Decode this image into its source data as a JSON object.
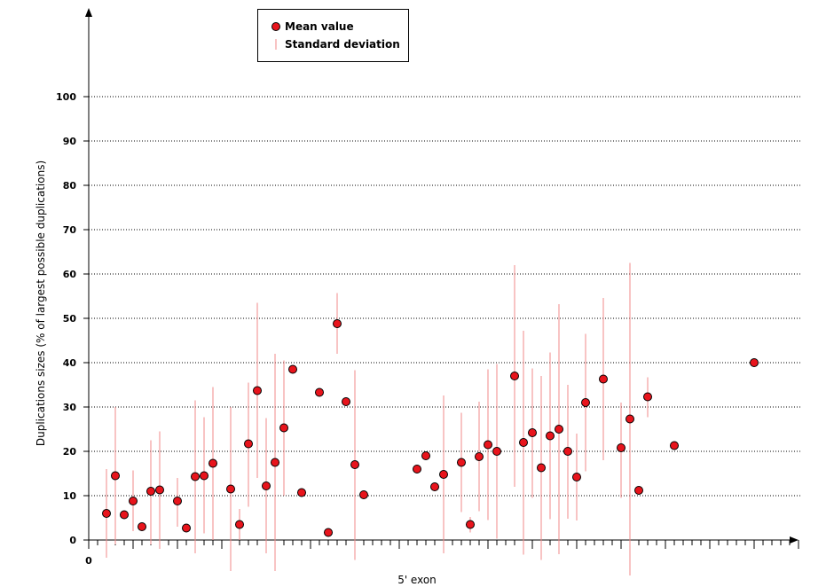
{
  "chart_data": {
    "type": "scatter",
    "xlabel": "5' exon",
    "ylabel": "Duplications sizes (% of largest possible duplications)",
    "ylim": [
      0,
      100
    ],
    "yticks": [
      0,
      10,
      20,
      30,
      40,
      50,
      60,
      70,
      80,
      90,
      100
    ],
    "xlim": [
      0,
      80
    ],
    "x_origin_label": "0",
    "grid": "horizontal dotted",
    "legend_position": "top-left",
    "legend": [
      {
        "label": "Mean value",
        "marker": "circle"
      },
      {
        "label": "Standard deviation",
        "marker": "line"
      }
    ],
    "colors": {
      "marker_fill": "#e8141c",
      "marker_stroke": "#000000",
      "sd_line": "#f08a8a"
    },
    "points": [
      {
        "x": 2,
        "mean": 6,
        "sd_low": -4,
        "sd_high": 16
      },
      {
        "x": 3,
        "mean": 14.5,
        "sd_low": -1,
        "sd_high": 30
      },
      {
        "x": 4,
        "mean": 5.7
      },
      {
        "x": 5,
        "mean": 8.8,
        "sd_low": 2,
        "sd_high": 15.7
      },
      {
        "x": 6,
        "mean": 3
      },
      {
        "x": 7,
        "mean": 11,
        "sd_low": -1,
        "sd_high": 22.5
      },
      {
        "x": 8,
        "mean": 11.3,
        "sd_low": -2,
        "sd_high": 24.5
      },
      {
        "x": 10,
        "mean": 8.8,
        "sd_low": 3,
        "sd_high": 14
      },
      {
        "x": 11,
        "mean": 2.7
      },
      {
        "x": 12,
        "mean": 14.3,
        "sd_low": -3,
        "sd_high": 31.5
      },
      {
        "x": 13,
        "mean": 14.5,
        "sd_low": 1.5,
        "sd_high": 27.7
      },
      {
        "x": 14,
        "mean": 17.3,
        "sd_low": 0,
        "sd_high": 34.5
      },
      {
        "x": 16,
        "mean": 11.5,
        "sd_low": -7,
        "sd_high": 30
      },
      {
        "x": 17,
        "mean": 3.5,
        "sd_low": 0,
        "sd_high": 7
      },
      {
        "x": 18,
        "mean": 21.7,
        "sd_low": 7.5,
        "sd_high": 35.5
      },
      {
        "x": 19,
        "mean": 33.7,
        "sd_low": 14,
        "sd_high": 53.5
      },
      {
        "x": 20,
        "mean": 12.2,
        "sd_low": -3,
        "sd_high": 27.5
      },
      {
        "x": 21,
        "mean": 17.5,
        "sd_low": -7,
        "sd_high": 42
      },
      {
        "x": 22,
        "mean": 25.3,
        "sd_low": 10,
        "sd_high": 40.5
      },
      {
        "x": 23,
        "mean": 38.5
      },
      {
        "x": 24,
        "mean": 10.7
      },
      {
        "x": 26,
        "mean": 33.3
      },
      {
        "x": 27,
        "mean": 1.7
      },
      {
        "x": 28,
        "mean": 48.8,
        "sd_low": 42,
        "sd_high": 55.7
      },
      {
        "x": 29,
        "mean": 31.2
      },
      {
        "x": 30,
        "mean": 17,
        "sd_low": -4.5,
        "sd_high": 38.3
      },
      {
        "x": 31,
        "mean": 10.2
      },
      {
        "x": 37,
        "mean": 16
      },
      {
        "x": 38,
        "mean": 19
      },
      {
        "x": 39,
        "mean": 12
      },
      {
        "x": 40,
        "mean": 14.8,
        "sd_low": -3,
        "sd_high": 32.6
      },
      {
        "x": 42,
        "mean": 17.5,
        "sd_low": 6.3,
        "sd_high": 28.7
      },
      {
        "x": 43,
        "mean": 3.5,
        "sd_low": 1.7,
        "sd_high": 5.2
      },
      {
        "x": 44,
        "mean": 18.8,
        "sd_low": 6.5,
        "sd_high": 31.2
      },
      {
        "x": 45,
        "mean": 21.5,
        "sd_low": 4.5,
        "sd_high": 38.5
      },
      {
        "x": 46,
        "mean": 20,
        "sd_low": 0.3,
        "sd_high": 39.7
      },
      {
        "x": 48,
        "mean": 37,
        "sd_low": 12,
        "sd_high": 62
      },
      {
        "x": 49,
        "mean": 22,
        "sd_low": -3.3,
        "sd_high": 47.2
      },
      {
        "x": 50,
        "mean": 24.2,
        "sd_low": 9.5,
        "sd_high": 38.7
      },
      {
        "x": 51,
        "mean": 16.3,
        "sd_low": -4.5,
        "sd_high": 37
      },
      {
        "x": 52,
        "mean": 23.5,
        "sd_low": 4.7,
        "sd_high": 42.3
      },
      {
        "x": 53,
        "mean": 25,
        "sd_low": -3.2,
        "sd_high": 53.2
      },
      {
        "x": 54,
        "mean": 20,
        "sd_low": 4.8,
        "sd_high": 35
      },
      {
        "x": 55,
        "mean": 14.2,
        "sd_low": 4.4,
        "sd_high": 24
      },
      {
        "x": 56,
        "mean": 31,
        "sd_low": 15.5,
        "sd_high": 46.5
      },
      {
        "x": 58,
        "mean": 36.3,
        "sd_low": 18,
        "sd_high": 54.6
      },
      {
        "x": 60,
        "mean": 20.8,
        "sd_low": 9.5,
        "sd_high": 31
      },
      {
        "x": 61,
        "mean": 27.3,
        "sd_low": -8,
        "sd_high": 62.5
      },
      {
        "x": 62,
        "mean": 11.2
      },
      {
        "x": 63,
        "mean": 32.3,
        "sd_low": 27.7,
        "sd_high": 36.7
      },
      {
        "x": 66,
        "mean": 21.3
      },
      {
        "x": 75,
        "mean": 40
      }
    ]
  }
}
